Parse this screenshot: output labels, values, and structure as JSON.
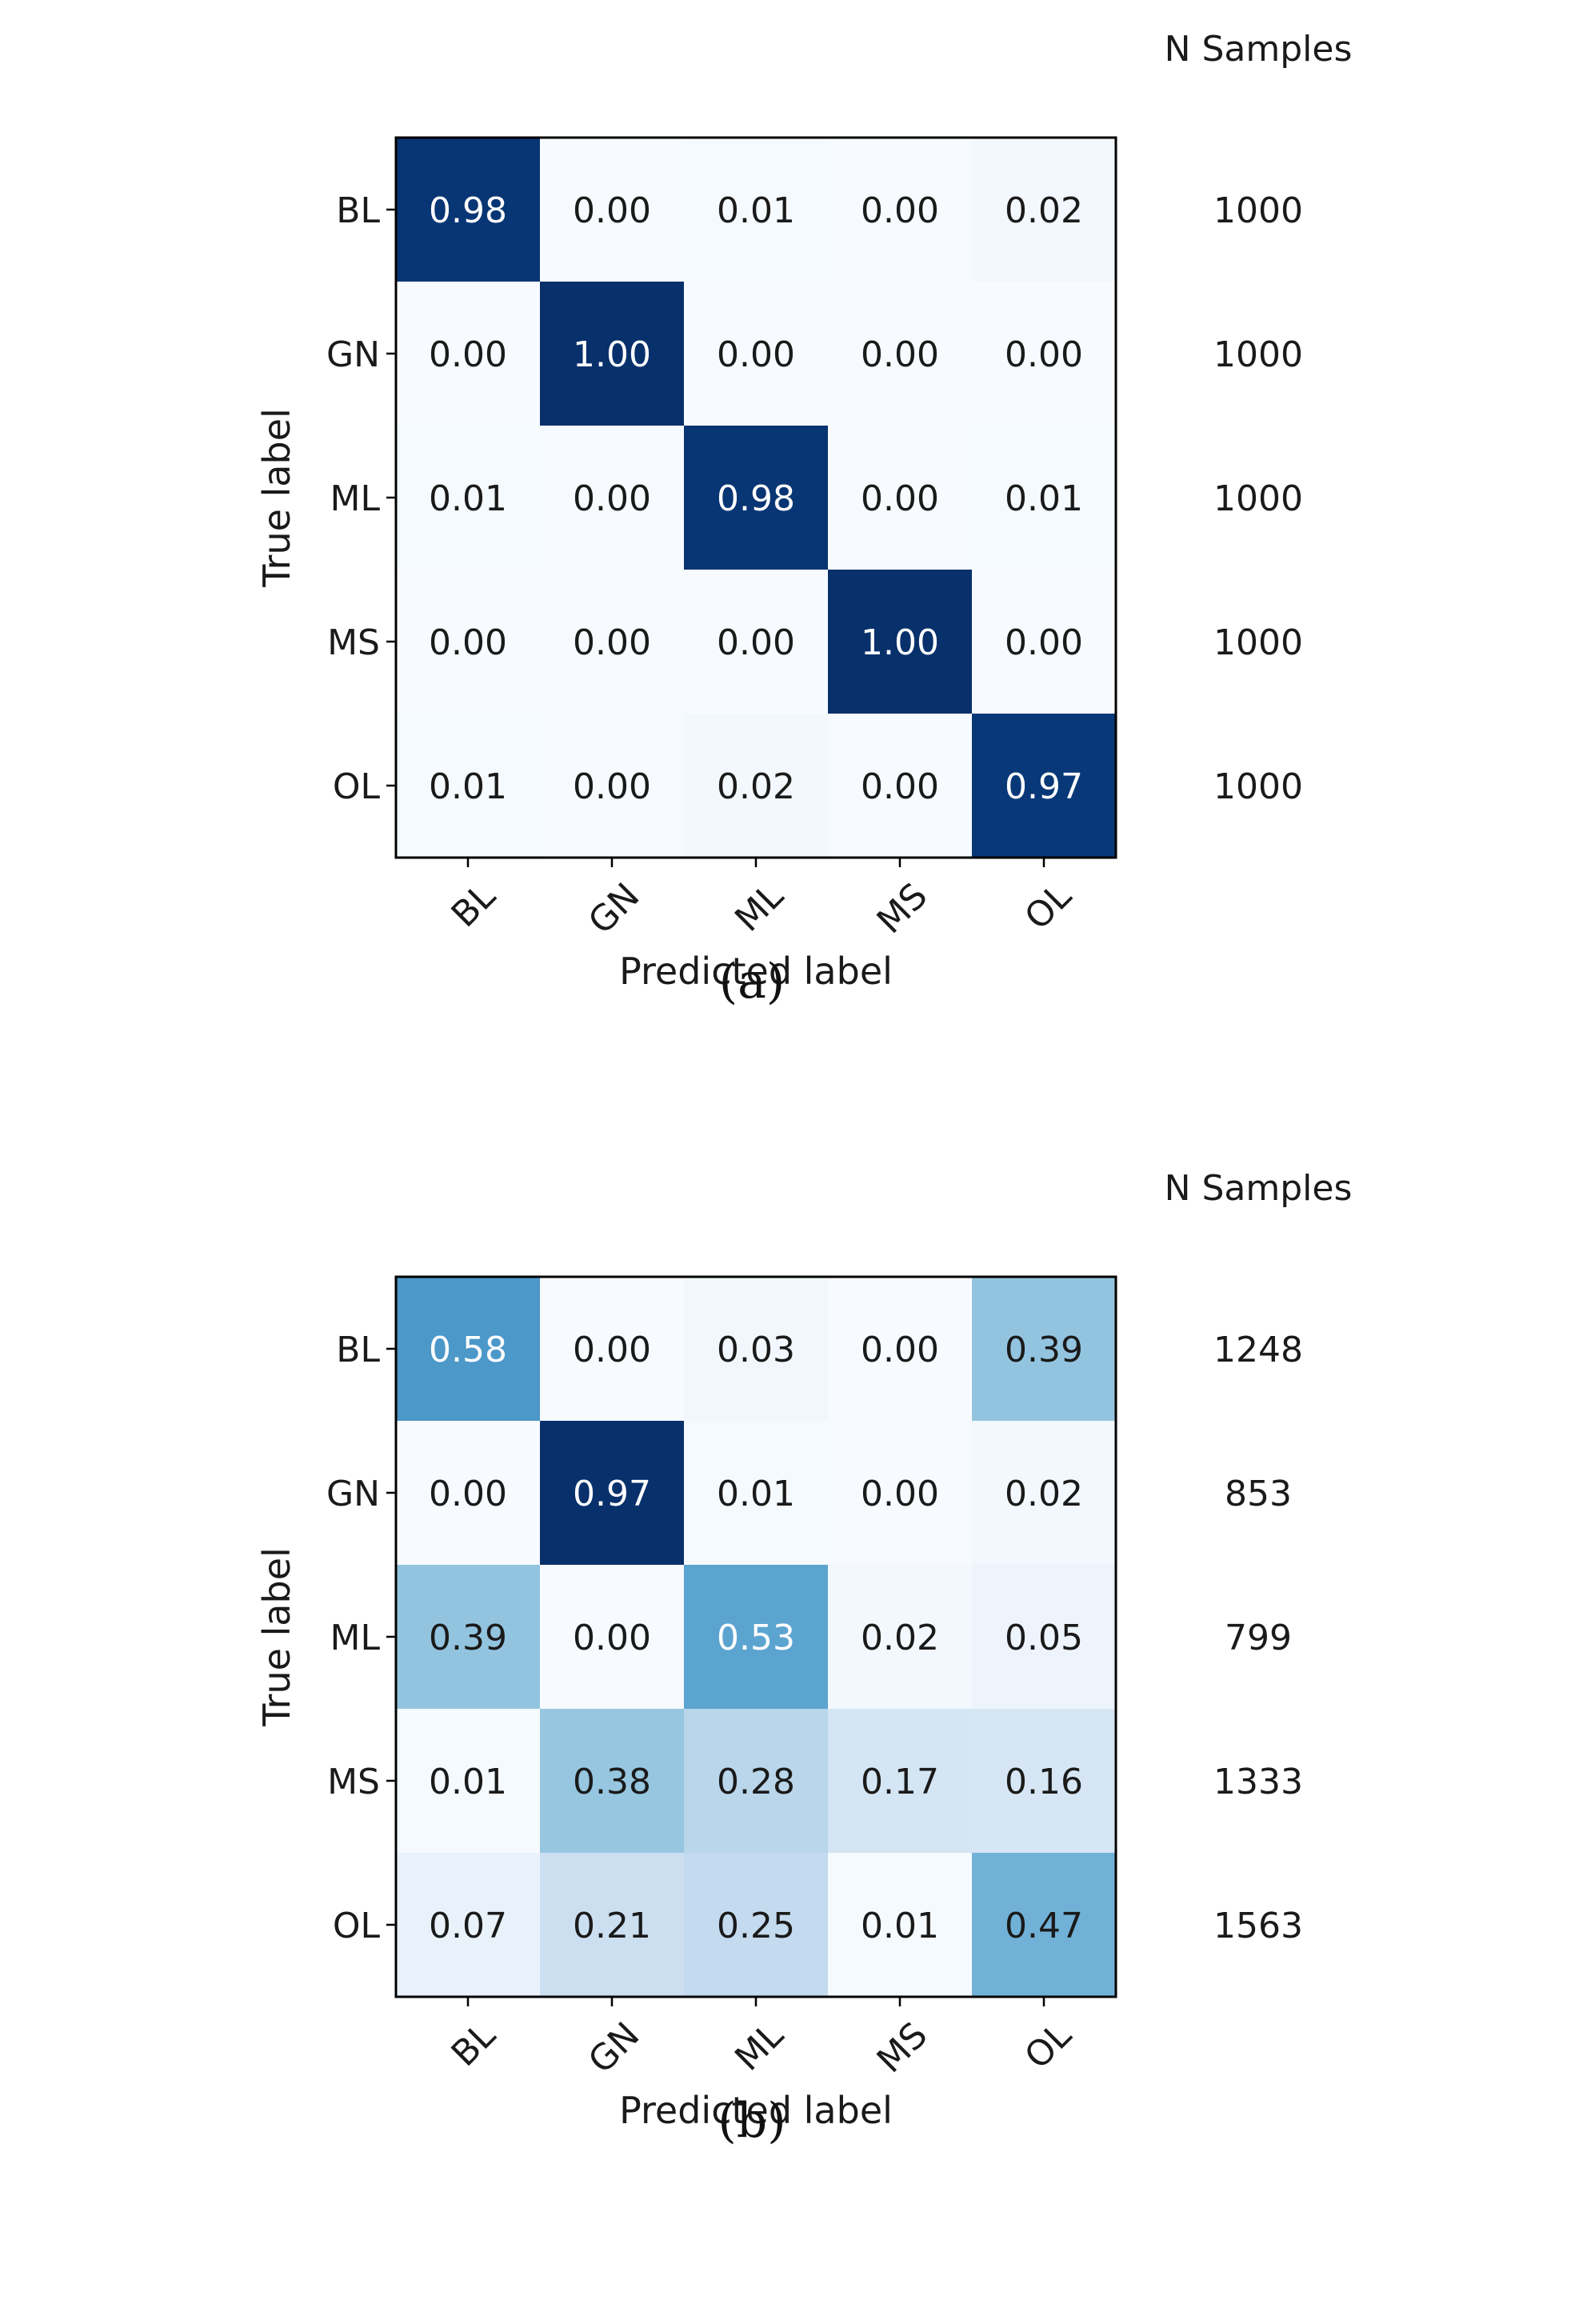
{
  "chart_data": [
    {
      "type": "heatmap",
      "title": "",
      "caption": "(a)",
      "xlabel": "Predicted label",
      "ylabel": "True label",
      "x_categories": [
        "BL",
        "GN",
        "ML",
        "MS",
        "OL"
      ],
      "y_categories": [
        "BL",
        "GN",
        "ML",
        "MS",
        "OL"
      ],
      "values": [
        [
          0.98,
          0.0,
          0.01,
          0.0,
          0.02
        ],
        [
          0.0,
          1.0,
          0.0,
          0.0,
          0.0
        ],
        [
          0.01,
          0.0,
          0.98,
          0.0,
          0.01
        ],
        [
          0.0,
          0.0,
          0.0,
          1.0,
          0.0
        ],
        [
          0.01,
          0.0,
          0.02,
          0.0,
          0.97
        ]
      ],
      "value_labels": [
        [
          "0.98",
          "0.00",
          "0.01",
          "0.00",
          "0.02"
        ],
        [
          "0.00",
          "1.00",
          "0.00",
          "0.00",
          "0.00"
        ],
        [
          "0.01",
          "0.00",
          "0.98",
          "0.00",
          "0.01"
        ],
        [
          "0.00",
          "0.00",
          "0.00",
          "1.00",
          "0.00"
        ],
        [
          "0.01",
          "0.00",
          "0.02",
          "0.00",
          "0.97"
        ]
      ],
      "side_header": "N Samples",
      "side_values": [
        "1000",
        "1000",
        "1000",
        "1000",
        "1000"
      ],
      "colormap": "Blues",
      "vrange": [
        0,
        1
      ]
    },
    {
      "type": "heatmap",
      "title": "",
      "caption": "(b)",
      "xlabel": "Predicted label",
      "ylabel": "True label",
      "x_categories": [
        "BL",
        "GN",
        "ML",
        "MS",
        "OL"
      ],
      "y_categories": [
        "BL",
        "GN",
        "ML",
        "MS",
        "OL"
      ],
      "values": [
        [
          0.58,
          0.0,
          0.03,
          0.0,
          0.39
        ],
        [
          0.0,
          0.97,
          0.01,
          0.0,
          0.02
        ],
        [
          0.39,
          0.0,
          0.53,
          0.02,
          0.05
        ],
        [
          0.01,
          0.38,
          0.28,
          0.17,
          0.16
        ],
        [
          0.07,
          0.21,
          0.25,
          0.01,
          0.47
        ]
      ],
      "value_labels": [
        [
          "0.58",
          "0.00",
          "0.03",
          "0.00",
          "0.39"
        ],
        [
          "0.00",
          "0.97",
          "0.01",
          "0.00",
          "0.02"
        ],
        [
          "0.39",
          "0.00",
          "0.53",
          "0.02",
          "0.05"
        ],
        [
          "0.01",
          "0.38",
          "0.28",
          "0.17",
          "0.16"
        ],
        [
          "0.07",
          "0.21",
          "0.25",
          "0.01",
          "0.47"
        ]
      ],
      "side_header": "N Samples",
      "side_values": [
        "1248",
        "853",
        "799",
        "1333",
        "1563"
      ],
      "colormap": "Blues",
      "vrange": [
        0,
        0.97
      ]
    }
  ],
  "colors": {
    "text_dark": "#1a1a1a",
    "text_light": "#ffffff",
    "frame": "#000000"
  }
}
